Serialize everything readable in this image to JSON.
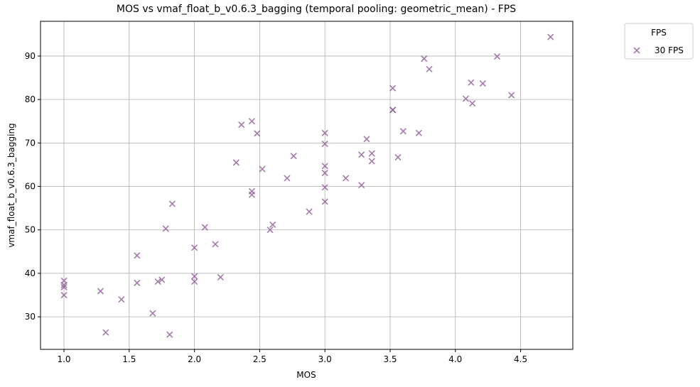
{
  "chart_data": {
    "type": "scatter",
    "title": "MOS vs vmaf_float_b_v0.6.3_bagging (temporal pooling: geometric_mean) - FPS",
    "xlabel": "MOS",
    "ylabel": "vmaf_float_b_v0.6.3_bagging",
    "xlim": [
      0.82,
      4.9
    ],
    "ylim": [
      22.5,
      98
    ],
    "xticks": [
      "1.0",
      "1.5",
      "2.0",
      "2.5",
      "3.0",
      "3.5",
      "4.0",
      "4.5"
    ],
    "yticks": [
      "30",
      "40",
      "50",
      "60",
      "70",
      "80",
      "90"
    ],
    "grid": true,
    "legend": {
      "title": "FPS",
      "position": "outside-top-right"
    },
    "series": [
      {
        "name": "30 FPS",
        "color": "#8e5a96",
        "marker": "x",
        "points": [
          [
            1.0,
            38.3
          ],
          [
            1.0,
            37.3
          ],
          [
            1.0,
            36.8
          ],
          [
            1.0,
            35.0
          ],
          [
            1.28,
            35.9
          ],
          [
            1.32,
            26.4
          ],
          [
            1.44,
            34.0
          ],
          [
            1.56,
            44.1
          ],
          [
            1.56,
            37.8
          ],
          [
            1.68,
            30.8
          ],
          [
            1.72,
            38.1
          ],
          [
            1.75,
            38.5
          ],
          [
            1.78,
            50.3
          ],
          [
            1.81,
            25.9
          ],
          [
            1.83,
            56.0
          ],
          [
            2.0,
            45.9
          ],
          [
            2.0,
            39.3
          ],
          [
            2.0,
            38.1
          ],
          [
            2.08,
            50.6
          ],
          [
            2.16,
            46.7
          ],
          [
            2.2,
            39.1
          ],
          [
            2.32,
            65.5
          ],
          [
            2.36,
            74.2
          ],
          [
            2.44,
            75.0
          ],
          [
            2.44,
            58.9
          ],
          [
            2.44,
            58.1
          ],
          [
            2.48,
            72.2
          ],
          [
            2.52,
            64.0
          ],
          [
            2.58,
            50.0
          ],
          [
            2.6,
            51.2
          ],
          [
            2.71,
            61.9
          ],
          [
            2.76,
            67.0
          ],
          [
            2.88,
            54.2
          ],
          [
            3.0,
            72.3
          ],
          [
            3.0,
            69.8
          ],
          [
            3.0,
            64.7
          ],
          [
            3.0,
            63.1
          ],
          [
            3.0,
            59.8
          ],
          [
            3.0,
            56.5
          ],
          [
            3.16,
            61.9
          ],
          [
            3.28,
            67.3
          ],
          [
            3.28,
            60.3
          ],
          [
            3.32,
            70.9
          ],
          [
            3.36,
            67.6
          ],
          [
            3.36,
            65.8
          ],
          [
            3.52,
            82.6
          ],
          [
            3.52,
            77.6
          ],
          [
            3.52,
            77.6
          ],
          [
            3.56,
            66.7
          ],
          [
            3.6,
            72.7
          ],
          [
            3.72,
            72.3
          ],
          [
            3.76,
            89.4
          ],
          [
            3.8,
            87.0
          ],
          [
            4.08,
            80.2
          ],
          [
            4.12,
            83.9
          ],
          [
            4.13,
            79.1
          ],
          [
            4.21,
            83.7
          ],
          [
            4.32,
            89.9
          ],
          [
            4.43,
            81.0
          ],
          [
            4.73,
            94.4
          ]
        ]
      }
    ]
  }
}
